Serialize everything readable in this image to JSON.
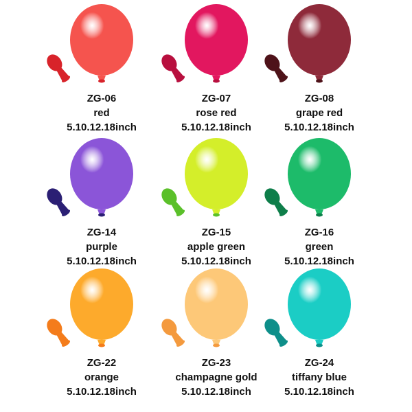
{
  "items": [
    {
      "code": "ZG-06",
      "name": "red",
      "sizes": "5.10.12.18inch",
      "color": "#f5544e",
      "deflated_color": "#d8232a"
    },
    {
      "code": "ZG-07",
      "name": "rose red",
      "sizes": "5.10.12.18inch",
      "color": "#e2175f",
      "deflated_color": "#b80f3e"
    },
    {
      "code": "ZG-08",
      "name": "grape red",
      "sizes": "5.10.12.18inch",
      "color": "#8e2a3a",
      "deflated_color": "#4e1219"
    },
    {
      "code": "ZG-14",
      "name": "purple",
      "sizes": "5.10.12.18inch",
      "color": "#8b55d8",
      "deflated_color": "#2b1f74"
    },
    {
      "code": "ZG-15",
      "name": "apple green",
      "sizes": "5.10.12.18inch",
      "color": "#d4ee2a",
      "deflated_color": "#5bc02a"
    },
    {
      "code": "ZG-16",
      "name": "green",
      "sizes": "5.10.12.18inch",
      "color": "#1dbb6a",
      "deflated_color": "#0e7e4a"
    },
    {
      "code": "ZG-22",
      "name": "orange",
      "sizes": "5.10.12.18inch",
      "color": "#fdaa2c",
      "deflated_color": "#f47c1b"
    },
    {
      "code": "ZG-23",
      "name": "champagne gold",
      "sizes": "5.10.12.18inch",
      "color": "#fdc878",
      "deflated_color": "#f49a3e"
    },
    {
      "code": "ZG-24",
      "name": "tiffany blue",
      "sizes": "5.10.12.18inch",
      "color": "#1bcdc5",
      "deflated_color": "#0e8f8a"
    }
  ]
}
